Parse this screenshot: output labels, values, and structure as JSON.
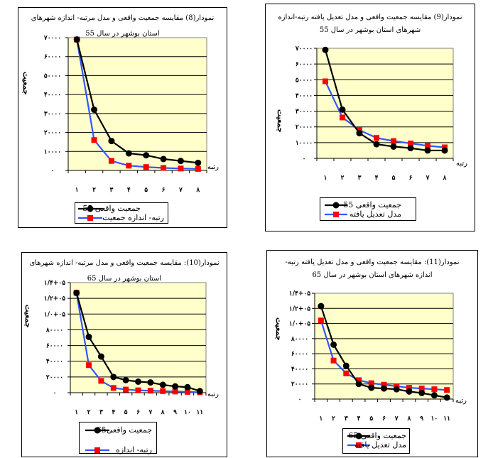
{
  "chart_data": [
    {
      "type": "line",
      "title_lines": [
        "نمودار(8) مقایسه جمعیت واقعی و مدل مرتبه- اندازه شهرهای",
        "استان بوشهر در سال 55"
      ],
      "ylabel": "جمعیت",
      "xlabel": "رتبه",
      "categories": [
        "۱",
        "۲",
        "۳",
        "۴",
        "۵",
        "۶",
        "۷",
        "۸"
      ],
      "y_ticks": [
        "۷۰۰۰۰",
        "۶۰۰۰۰",
        "۵۰۰۰۰",
        "۴۰۰۰۰",
        "۳۰۰۰۰",
        "۲۰۰۰۰",
        "۱۰۰۰۰",
        "۰"
      ],
      "ylim": [
        0,
        70000
      ],
      "grid": true,
      "legend_position": "bottom",
      "series": [
        {
          "name": "جمعیت واقعی 55",
          "color": "#000000",
          "marker": "circle",
          "values": [
            69000,
            32000,
            15500,
            9000,
            8000,
            6000,
            5000,
            4000
          ]
        },
        {
          "name": "رتبه- اندازه جمعیت",
          "color": "#ff0000",
          "marker": "square",
          "values": [
            69000,
            16000,
            5000,
            2500,
            1800,
            1300,
            1000,
            800
          ]
        }
      ]
    },
    {
      "type": "line",
      "title_lines": [
        "نمودار(9) مقایسه جمعیت واقعی و مدل تعدیل یافته رتبه-اندازه",
        "شهرهای استان بوشهر در سال 55"
      ],
      "ylabel": "جمعیت",
      "xlabel": "رتبه",
      "categories": [
        "۱",
        "۲",
        "۳",
        "۴",
        "۵",
        "۶",
        "۷",
        "۸"
      ],
      "y_ticks": [
        "۷۰۰۰۰",
        "۶۰۰۰۰",
        "۵۰۰۰۰",
        "۴۰۰۰۰",
        "۳۰۰۰۰",
        "۲۰۰۰۰",
        "۱۰۰۰۰",
        "۰"
      ],
      "ylim": [
        0,
        70000
      ],
      "grid": true,
      "legend_position": "bottom",
      "series": [
        {
          "name": "جمعیت واقعی 55",
          "color": "#000000",
          "marker": "circle",
          "values": [
            69000,
            31000,
            16000,
            9000,
            7500,
            6500,
            5000,
            5000
          ]
        },
        {
          "name": "مدل تعدیل یافته",
          "color": "#ff0000",
          "marker": "square",
          "values": [
            49000,
            26000,
            18000,
            13000,
            11000,
            9500,
            8000,
            7000
          ]
        }
      ]
    },
    {
      "type": "line",
      "title_lines": [
        "نمودار(10): مقایسه جمعیت واقعی و مدل مرتبه- اندازه شهرهای",
        "استان بوشهر در سال 65"
      ],
      "ylabel": "جمعیت",
      "xlabel": "رتبه",
      "categories": [
        "۱",
        "۲",
        "۳",
        "۴",
        "۵",
        "۶",
        "۷",
        "۸",
        "۹",
        "۱۰",
        "۱۱"
      ],
      "y_ticks": [
        "۱/۴+۰۵",
        "۱/۲+۰۵",
        "۱/۰+۰۵",
        "۸۰۰۰۰",
        "۶۰۰۰۰",
        "۴۰۰۰۰",
        "۲۰۰۰۰",
        "۰"
      ],
      "ylim": [
        0,
        140000
      ],
      "grid": true,
      "legend_position": "bottom",
      "series": [
        {
          "name": "جمعیت واقعی65",
          "color": "#000000",
          "marker": "circle",
          "values": [
            127000,
            71000,
            46000,
            20000,
            16000,
            14000,
            13000,
            10000,
            8000,
            7000,
            2000
          ]
        },
        {
          "name": "رتبه- اندازه",
          "color": "#ff0000",
          "marker": "square",
          "values": [
            127000,
            35000,
            15000,
            6000,
            4000,
            3000,
            2500,
            2000,
            1500,
            1000,
            500
          ]
        }
      ]
    },
    {
      "type": "line",
      "title_lines": [
        "نمودار(11): مقایسه جمعیت واقعی و مدل تعدیل یافته رتبه-",
        "اندازه شهرهای استان بوشهر در سال 65"
      ],
      "ylabel": "جمعیت",
      "xlabel": "رتبه",
      "categories": [
        "۱",
        "۲",
        "۳",
        "۴",
        "۵",
        "۶",
        "۷",
        "۸",
        "۹",
        "۱۰",
        "۱۱"
      ],
      "y_ticks": [
        "۱/۴+۰۵",
        "۱/۲+۰۵",
        "۱/۰+۰۵",
        "۸۰۰۰۰",
        "۶۰۰۰۰",
        "۴۰۰۰۰",
        "۲۰۰۰۰",
        "۰"
      ],
      "ylim": [
        0,
        140000
      ],
      "grid": true,
      "legend_position": "bottom",
      "series": [
        {
          "name": "جمعیت واقعی 65",
          "color": "#000000",
          "marker": "circle",
          "values": [
            123000,
            72000,
            44000,
            20000,
            15000,
            14000,
            13000,
            10000,
            8000,
            5000,
            2000
          ]
        },
        {
          "name": "مدل تعدیل یافته",
          "color": "#ff0000",
          "marker": "square",
          "values": [
            104000,
            51000,
            34000,
            25000,
            21000,
            19000,
            17000,
            15000,
            14000,
            13000,
            12000
          ]
        }
      ]
    }
  ]
}
